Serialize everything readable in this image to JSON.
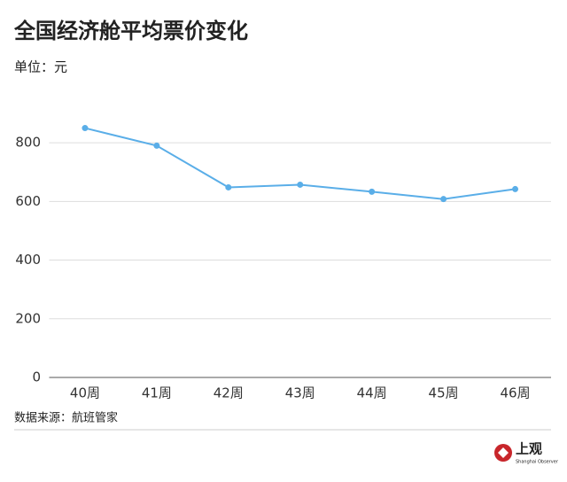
{
  "chart_data": {
    "type": "line",
    "title": "全国经济舱平均票价变化",
    "subtitle": "单位：元",
    "categories": [
      "40周",
      "41周",
      "42周",
      "43周",
      "44周",
      "45周",
      "46周"
    ],
    "values": [
      850,
      790,
      648,
      657,
      633,
      608,
      642
    ],
    "color": "#5aaee8",
    "ylim": [
      0,
      900
    ],
    "yticks": [
      0,
      200,
      400,
      600,
      800
    ],
    "grid": true,
    "source": "数据来源：航班管家"
  },
  "logo": {
    "name": "上观",
    "sub": "Shanghai Observer"
  }
}
